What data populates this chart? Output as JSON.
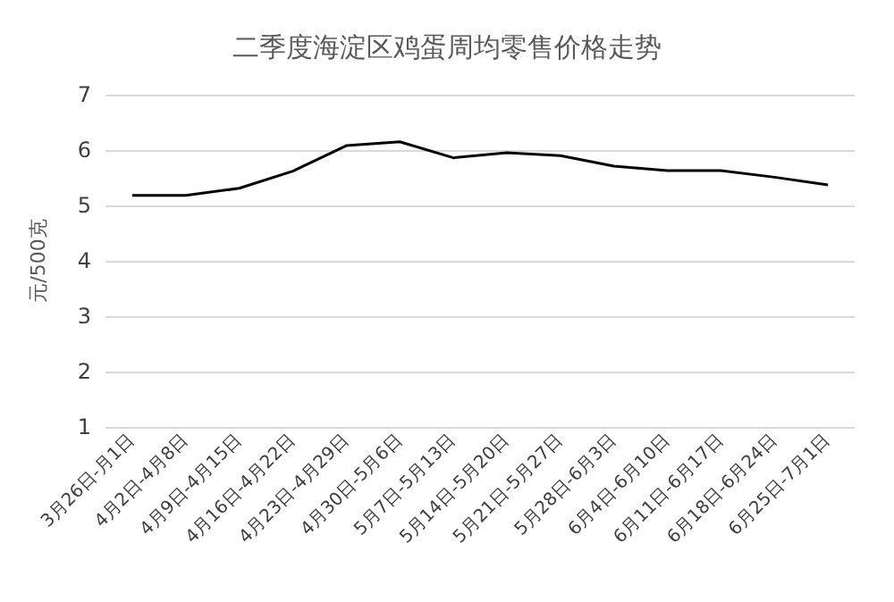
{
  "chart_data": {
    "type": "line",
    "title": "二季度海淀区鸡蛋周均零售价格走势",
    "ylabel": "元/500克",
    "categories": [
      "3月26日-月1日",
      "4月2日-4月8日",
      "4月9日-4月15日",
      "4月16日-4月22日",
      "4月23日-4月29日",
      "4月30日-5月6日",
      "5月7日-5月13日",
      "5月14日-5月20日",
      "5月21日-5月27日",
      "5月28日-6月3日",
      "6月4日-6月10日",
      "6月11日-6月17日",
      "6月18日-6月24日",
      "6月25日-7月1日"
    ],
    "values": [
      5.18,
      5.18,
      5.31,
      5.62,
      6.08,
      6.15,
      5.86,
      5.95,
      5.9,
      5.71,
      5.63,
      5.63,
      5.51,
      5.37
    ],
    "color": "#000000",
    "ylim": [
      1,
      7
    ],
    "yticks": [
      1,
      2,
      3,
      4,
      5,
      6,
      7
    ],
    "grid": "y",
    "marker": "none",
    "line_style": "solid"
  }
}
